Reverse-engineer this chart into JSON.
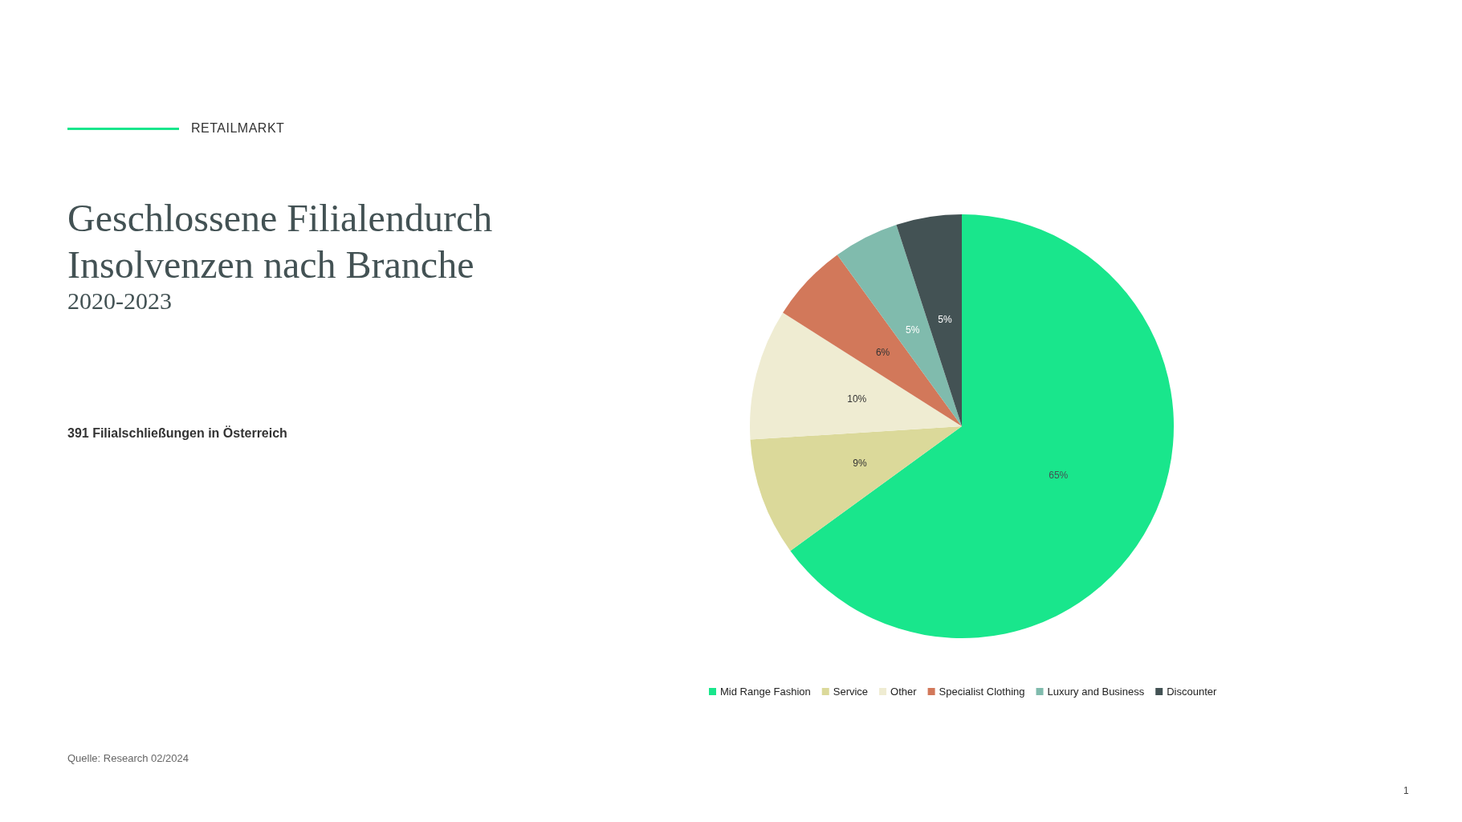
{
  "chart_data": {
    "type": "pie",
    "title": "Geschlossene Filialendurch Insolvenzen nach Branche",
    "subtitle": "2020-2023",
    "annotations": [
      "RETAILMARKT",
      "391 Filialschließungen in Österreich",
      "Quelle: Research 02/2024",
      "1"
    ],
    "categories": [
      "Mid Range Fashion",
      "Service",
      "Other",
      "Specialist Clothing",
      "Luxury and Business",
      "Discounter"
    ],
    "values": [
      65,
      9,
      10,
      6,
      5,
      5
    ],
    "value_labels": [
      "65%",
      "9%",
      "10%",
      "6%",
      "5%",
      "5%"
    ],
    "colors": [
      "#19e68c",
      "#dbd99a",
      "#efecd2",
      "#d2785a",
      "#80bbad",
      "#435254"
    ],
    "legend": "bottom"
  }
}
